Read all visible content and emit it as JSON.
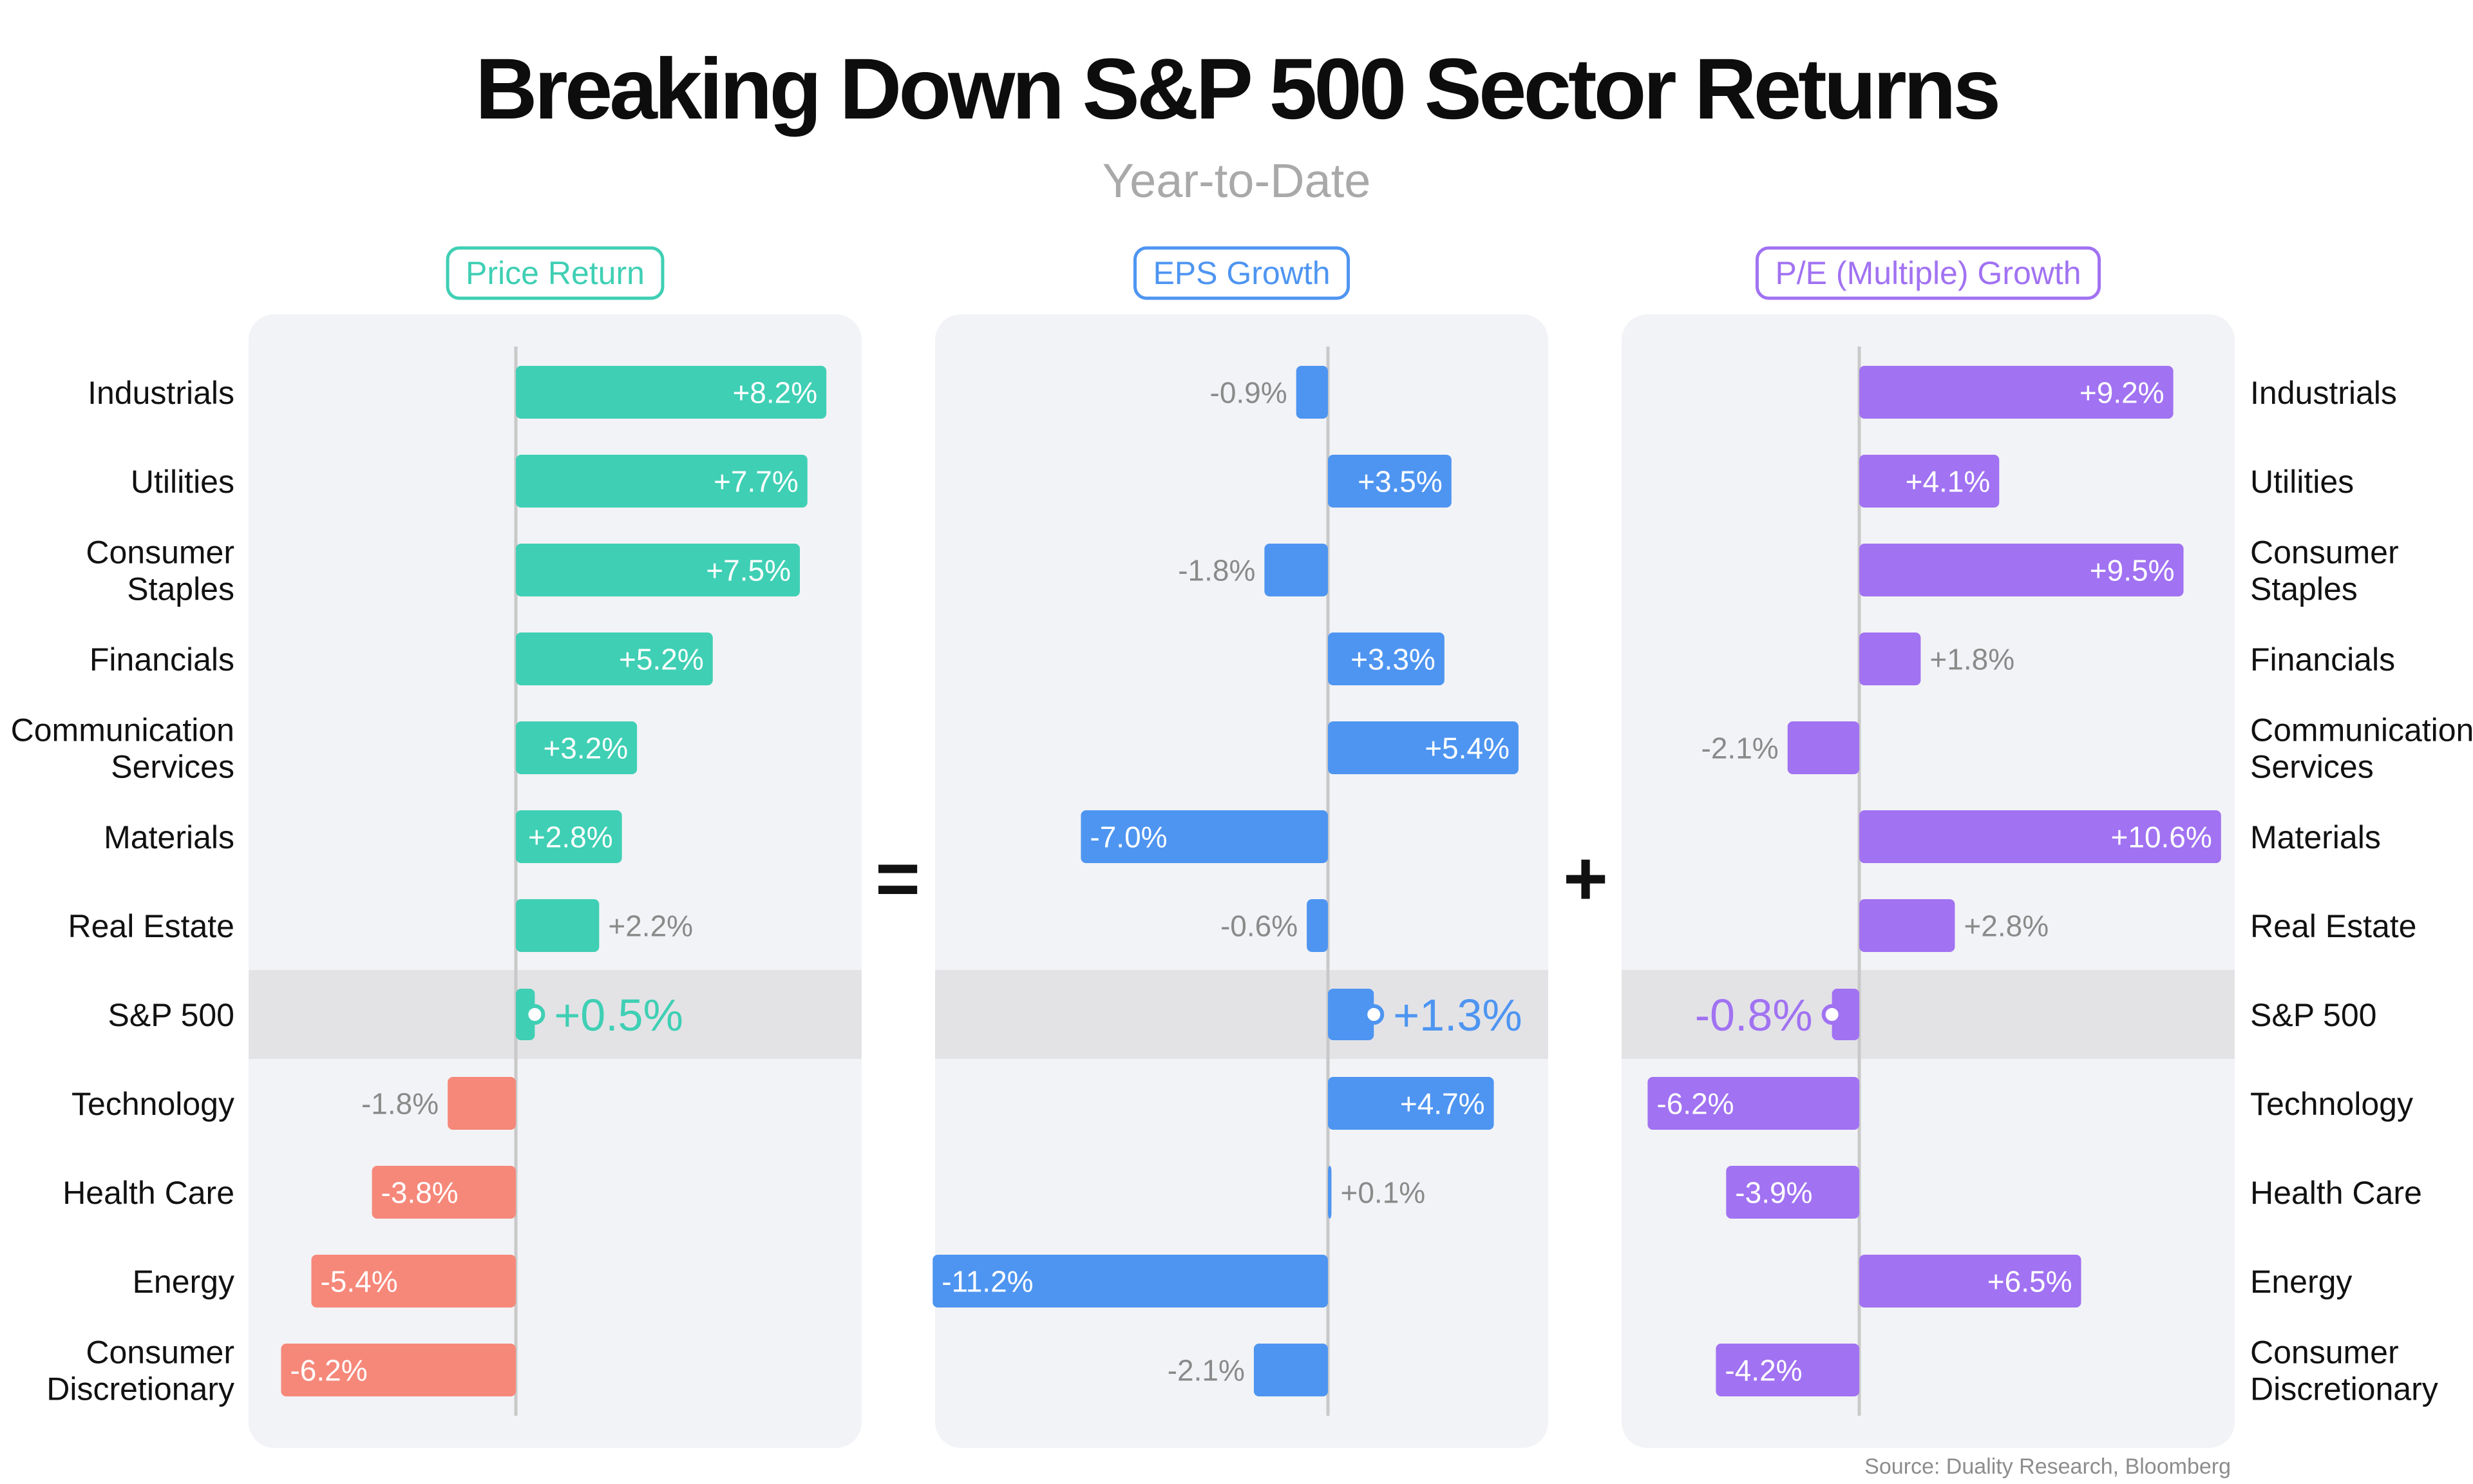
{
  "title": "Breaking Down S&P 500 Sector Returns",
  "subtitle": "Year-to-Date",
  "source": "Source: Duality Research, Bloomberg",
  "operators": {
    "equals": "=",
    "plus": "+"
  },
  "colors": {
    "price_pos": "#3fcfb4",
    "price_neg": "#f6887a",
    "eps": "#4e95f1",
    "pe": "#a172f2",
    "panel_bg": "#f2f3f6",
    "highlight_row": "#e3e3e6",
    "axis": "#c9c9c9",
    "label_outside": "#8a8a8a"
  },
  "chart_data": [
    {
      "type": "bar",
      "orientation": "horizontal",
      "title": "Price Return",
      "unit": "%",
      "categories": [
        "Industrials",
        "Utilities",
        "Consumer Staples",
        "Financials",
        "Communication Services",
        "Materials",
        "Real Estate",
        "S&P 500",
        "Technology",
        "Health Care",
        "Energy",
        "Consumer Discretionary"
      ],
      "values": [
        8.2,
        7.7,
        7.5,
        5.2,
        3.2,
        2.8,
        2.2,
        0.5,
        -1.8,
        -3.8,
        -5.4,
        -6.2
      ],
      "labels": [
        "+8.2%",
        "+7.7%",
        "+7.5%",
        "+5.2%",
        "+3.2%",
        "+2.8%",
        "+2.2%",
        "+0.5%",
        "-1.8%",
        "-3.8%",
        "-5.4%",
        "-6.2%"
      ]
    },
    {
      "type": "bar",
      "orientation": "horizontal",
      "title": "EPS Growth",
      "unit": "%",
      "categories": [
        "Industrials",
        "Utilities",
        "Consumer Staples",
        "Financials",
        "Communication Services",
        "Materials",
        "Real Estate",
        "S&P 500",
        "Technology",
        "Health Care",
        "Energy",
        "Consumer Discretionary"
      ],
      "values": [
        -0.9,
        3.5,
        -1.8,
        3.3,
        5.4,
        -7.0,
        -0.6,
        1.3,
        4.7,
        0.1,
        -11.2,
        -2.1
      ],
      "labels": [
        "-0.9%",
        "+3.5%",
        "-1.8%",
        "+3.3%",
        "+5.4%",
        "-7.0%",
        "-0.6%",
        "+1.3%",
        "+4.7%",
        "+0.1%",
        "-11.2%",
        "-2.1%"
      ]
    },
    {
      "type": "bar",
      "orientation": "horizontal",
      "title": "P/E (Multiple) Growth",
      "unit": "%",
      "categories": [
        "Industrials",
        "Utilities",
        "Consumer Staples",
        "Financials",
        "Communication Services",
        "Materials",
        "Real Estate",
        "S&P 500",
        "Technology",
        "Health Care",
        "Energy",
        "Consumer Discretionary"
      ],
      "values": [
        9.2,
        4.1,
        9.5,
        1.8,
        -2.1,
        10.6,
        2.8,
        -0.8,
        -6.2,
        -3.9,
        6.5,
        -4.2
      ],
      "labels": [
        "+9.2%",
        "+4.1%",
        "+9.5%",
        "+1.8%",
        "-2.1%",
        "+10.6%",
        "+2.8%",
        "-0.8%",
        "-6.2%",
        "-3.9%",
        "+6.5%",
        "-4.2%"
      ]
    }
  ],
  "row_labels": [
    [
      "Industrials"
    ],
    [
      "Utilities"
    ],
    [
      "Consumer",
      "Staples"
    ],
    [
      "Financials"
    ],
    [
      "Communication",
      "Services"
    ],
    [
      "Materials"
    ],
    [
      "Real Estate"
    ],
    [
      "S&P 500"
    ],
    [
      "Technology"
    ],
    [
      "Health Care"
    ],
    [
      "Energy"
    ],
    [
      "Consumer",
      "Discretionary"
    ]
  ]
}
